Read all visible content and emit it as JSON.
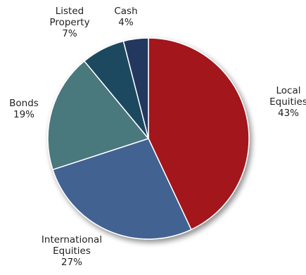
{
  "chart_data": {
    "type": "pie",
    "slices": [
      {
        "label": "Local Equities",
        "label_lines": [
          "Local",
          "Equities"
        ],
        "value": 43,
        "value_text": "43%",
        "color": "#a3121c"
      },
      {
        "label": "International Equities",
        "label_lines": [
          "International",
          "Equities"
        ],
        "value": 27,
        "value_text": "27%",
        "color": "#436292"
      },
      {
        "label": "Bonds",
        "label_lines": [
          "Bonds"
        ],
        "value": 19,
        "value_text": "19%",
        "color": "#4a787d"
      },
      {
        "label": "Listed Property",
        "label_lines": [
          "Listed",
          "Property"
        ],
        "value": 7,
        "value_text": "7%",
        "color": "#1c4a5f"
      },
      {
        "label": "Cash",
        "label_lines": [
          "Cash"
        ],
        "value": 4,
        "value_text": "4%",
        "color": "#24385e"
      }
    ],
    "start": "12 o'clock",
    "direction": "clockwise",
    "shadow": true
  }
}
